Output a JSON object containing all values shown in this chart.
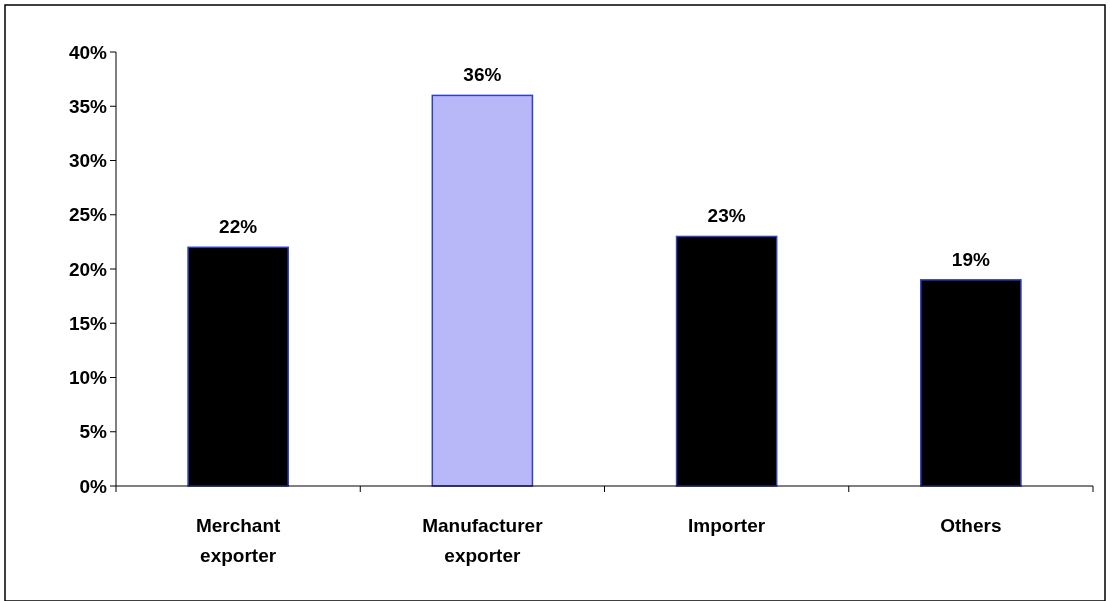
{
  "chart_data": {
    "type": "bar",
    "categories": [
      "Merchant exporter",
      "Manufacturer exporter",
      "Importer",
      "Others"
    ],
    "values": [
      22,
      36,
      23,
      19
    ],
    "colors": [
      "#000000",
      "#b8b8f8",
      "#000000",
      "#000000"
    ],
    "value_labels": [
      "22%",
      "36%",
      "23%",
      "19%"
    ],
    "ylim": [
      0,
      40
    ],
    "yticks": [
      {
        "value": 0,
        "label": "0%"
      },
      {
        "value": 5,
        "label": "5%"
      },
      {
        "value": 10,
        "label": "10%"
      },
      {
        "value": 15,
        "label": "15%"
      },
      {
        "value": 20,
        "label": "20%"
      },
      {
        "value": 25,
        "label": "25%"
      },
      {
        "value": 30,
        "label": "30%"
      },
      {
        "value": 35,
        "label": "35%"
      },
      {
        "value": 40,
        "label": "40%"
      }
    ],
    "grid": false
  }
}
